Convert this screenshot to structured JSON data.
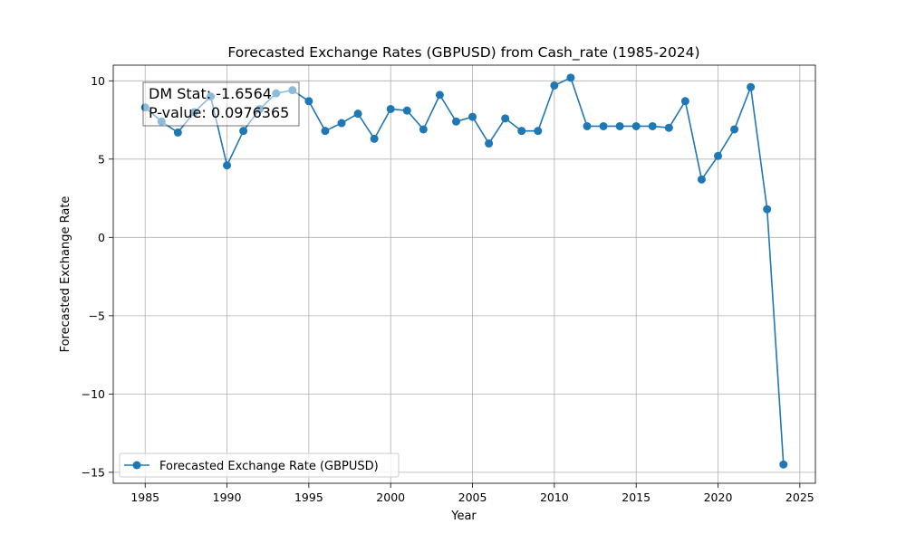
{
  "chart_data": {
    "type": "line",
    "title": "Forecasted Exchange Rates (GBPUSD) from Cash_rate (1985-2024)",
    "xlabel": "Year",
    "ylabel": "Forecasted Exchange Rate",
    "xlim": [
      1983.05,
      2025.95
    ],
    "ylim": [
      -15.7,
      11.0
    ],
    "xticks": [
      1985,
      1990,
      1995,
      2000,
      2005,
      2010,
      2015,
      2020,
      2025
    ],
    "yticks": [
      -15,
      -10,
      -5,
      0,
      5,
      10
    ],
    "grid": true,
    "legend_position": "lower-left",
    "color": "#1f77b4",
    "series": [
      {
        "name": "Forecasted Exchange Rate (GBPUSD)",
        "x": [
          1985,
          1986,
          1987,
          1988,
          1989,
          1990,
          1991,
          1992,
          1993,
          1994,
          1995,
          1996,
          1997,
          1998,
          1999,
          2000,
          2001,
          2002,
          2003,
          2004,
          2005,
          2006,
          2007,
          2008,
          2009,
          2010,
          2011,
          2012,
          2013,
          2014,
          2015,
          2016,
          2017,
          2018,
          2019,
          2020,
          2021,
          2022,
          2023,
          2024
        ],
        "values": [
          8.3,
          7.4,
          6.7,
          8.0,
          9.0,
          4.6,
          6.8,
          8.2,
          9.2,
          9.4,
          8.7,
          6.8,
          7.3,
          7.9,
          6.3,
          8.2,
          8.1,
          6.9,
          9.1,
          7.4,
          7.7,
          6.0,
          7.6,
          6.8,
          6.8,
          9.7,
          10.2,
          7.1,
          7.1,
          7.1,
          7.1,
          7.1,
          7.0,
          8.7,
          3.7,
          5.2,
          6.9,
          9.6,
          1.8,
          -14.5
        ]
      }
    ],
    "annotation": {
      "lines": [
        "DM Stat: -1.6564",
        "P-value: 0.0976365"
      ],
      "position": "top-left"
    }
  }
}
